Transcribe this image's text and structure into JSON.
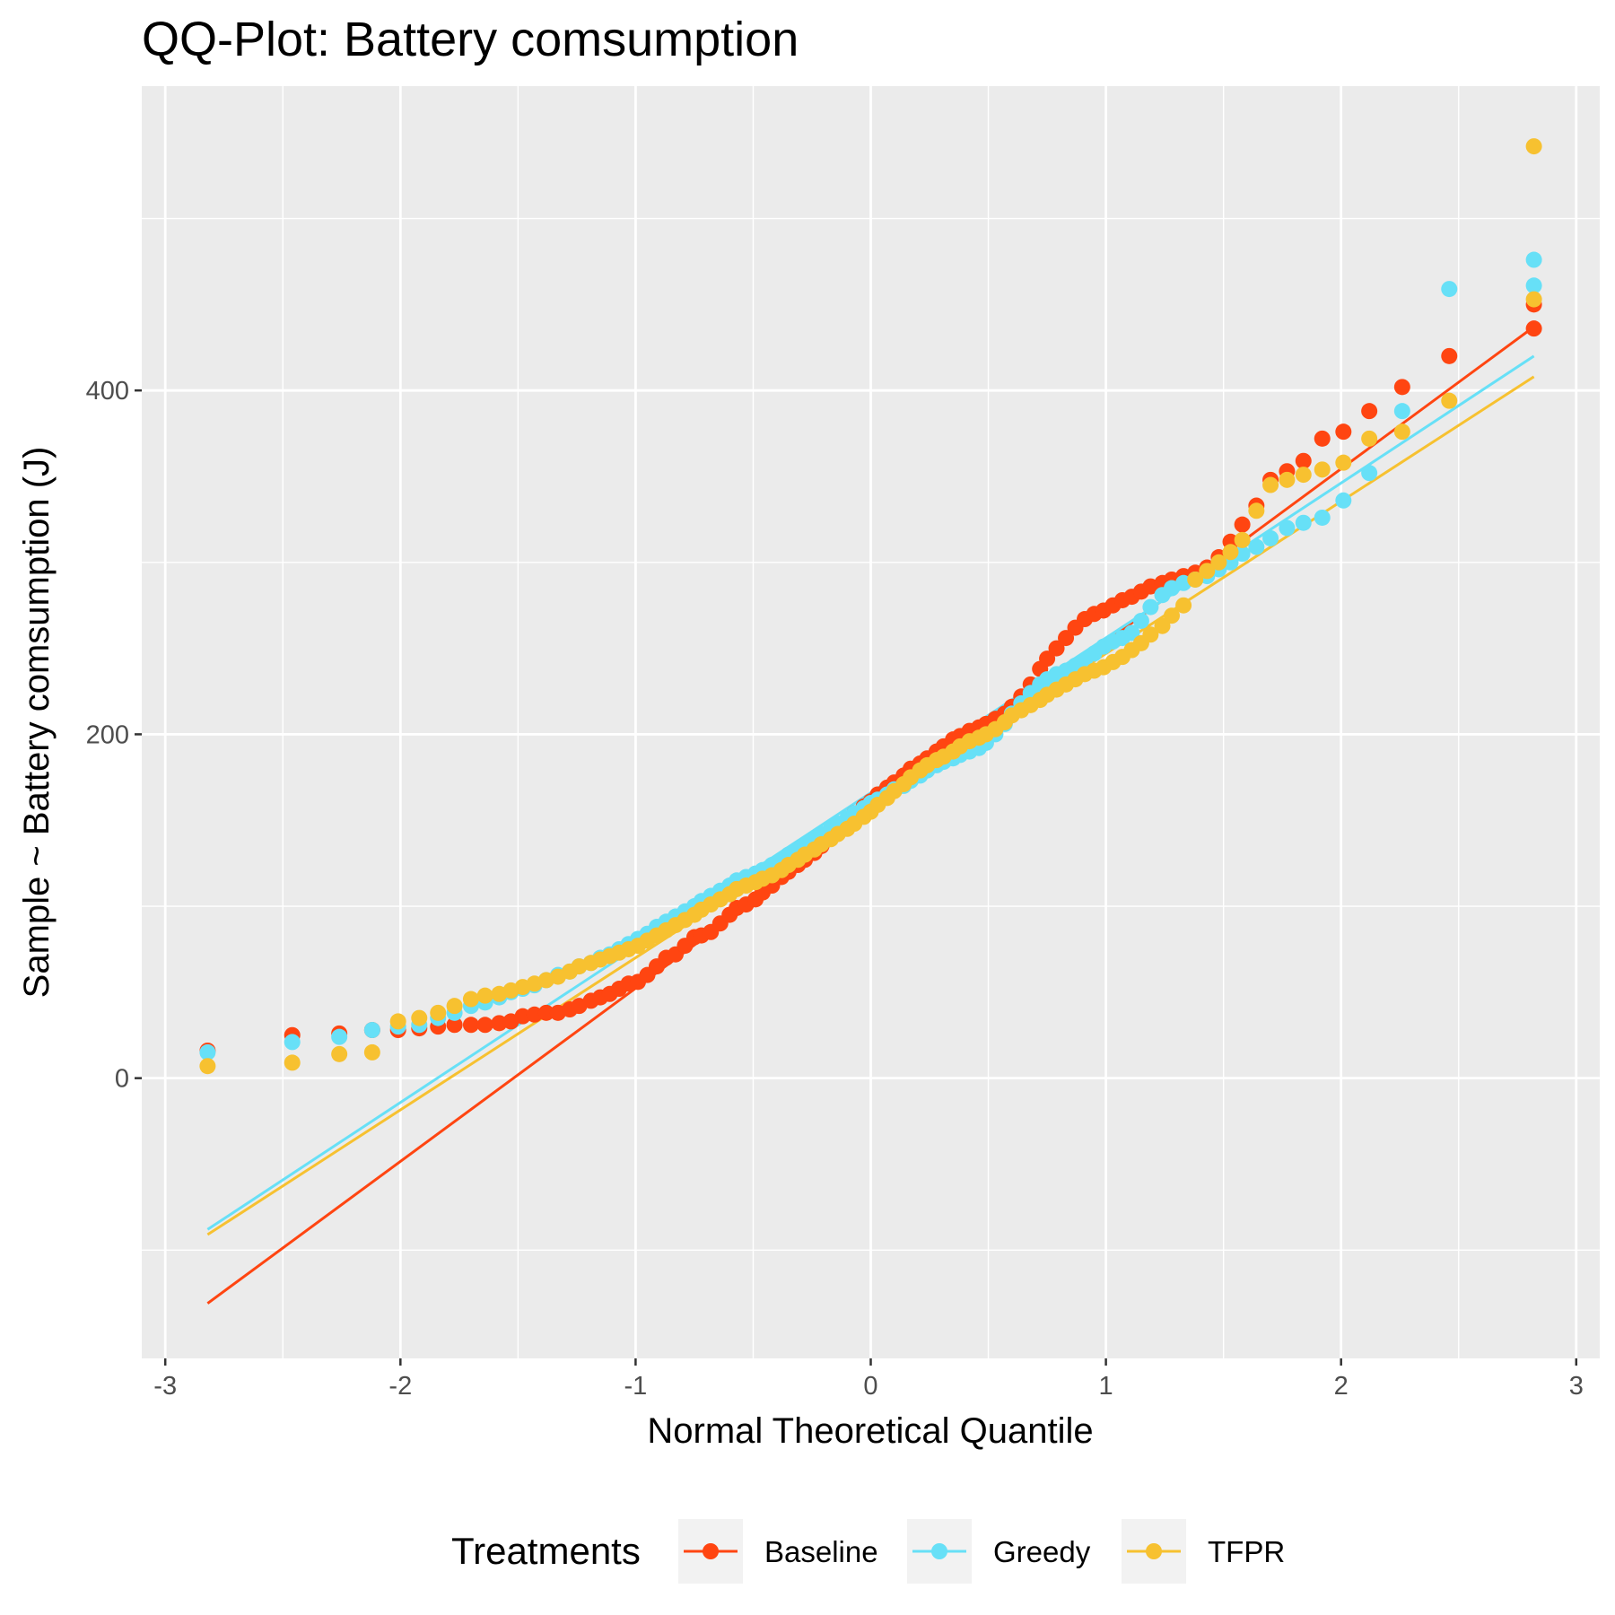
{
  "chart_data": {
    "type": "scatter",
    "title": "QQ-Plot: Battery comsumption",
    "xlabel": "Normal Theoretical Quantile",
    "ylabel": "Sample ~ Battery comsumption (J)",
    "xlim": [
      -3.1,
      3.1
    ],
    "ylim": [
      -163,
      577
    ],
    "x_ticks": [
      -3,
      -2,
      -1,
      0,
      1,
      2,
      3
    ],
    "x_tick_labels": [
      "-3",
      "-2",
      "-1",
      "0",
      "1",
      "2",
      "3"
    ],
    "y_ticks": [
      0,
      200,
      400
    ],
    "y_tick_labels": [
      "0",
      "200",
      "400"
    ],
    "grid": true,
    "legend": {
      "title": "Treatments",
      "position": "bottom"
    },
    "series": [
      {
        "name": "Baseline",
        "color": "#FF4511",
        "line": {
          "x": [
            -2.82,
            2.82
          ],
          "y": [
            -131,
            437
          ]
        },
        "points": [
          [
            -2.82,
            16
          ],
          [
            -2.46,
            25
          ],
          [
            -2.26,
            26
          ],
          [
            -2.12,
            28
          ],
          [
            -2.01,
            28
          ],
          [
            -1.92,
            29
          ],
          [
            -1.84,
            30
          ],
          [
            -1.77,
            31
          ],
          [
            -1.7,
            31
          ],
          [
            -1.64,
            31
          ],
          [
            -1.58,
            32
          ],
          [
            -1.53,
            33
          ],
          [
            -1.48,
            36
          ],
          [
            -1.43,
            37
          ],
          [
            -1.38,
            38
          ],
          [
            -1.33,
            38
          ],
          [
            -1.28,
            40
          ],
          [
            -1.24,
            42
          ],
          [
            -1.19,
            45
          ],
          [
            -1.15,
            47
          ],
          [
            -1.11,
            49
          ],
          [
            -1.07,
            52
          ],
          [
            -1.03,
            55
          ],
          [
            -0.99,
            56
          ],
          [
            -0.95,
            60
          ],
          [
            -0.91,
            65
          ],
          [
            -0.87,
            70
          ],
          [
            -0.83,
            72
          ],
          [
            -0.79,
            77
          ],
          [
            -0.75,
            82
          ],
          [
            -0.72,
            83
          ],
          [
            -0.68,
            85
          ],
          [
            -0.64,
            90
          ],
          [
            -0.6,
            95
          ],
          [
            -0.57,
            99
          ],
          [
            -0.53,
            101
          ],
          [
            -0.49,
            104
          ],
          [
            -0.46,
            108
          ],
          [
            -0.42,
            112
          ],
          [
            -0.38,
            117
          ],
          [
            -0.35,
            120
          ],
          [
            -0.31,
            124
          ],
          [
            -0.28,
            127
          ],
          [
            -0.24,
            131
          ],
          [
            -0.21,
            135
          ],
          [
            -0.17,
            140
          ],
          [
            -0.14,
            144
          ],
          [
            -0.1,
            150
          ],
          [
            -0.07,
            154
          ],
          [
            -0.03,
            158
          ],
          [
            0,
            161
          ],
          [
            0.03,
            165
          ],
          [
            0.07,
            169
          ],
          [
            0.1,
            172
          ],
          [
            0.14,
            176
          ],
          [
            0.17,
            180
          ],
          [
            0.21,
            183
          ],
          [
            0.24,
            186
          ],
          [
            0.28,
            190
          ],
          [
            0.31,
            193
          ],
          [
            0.35,
            197
          ],
          [
            0.38,
            199
          ],
          [
            0.42,
            202
          ],
          [
            0.46,
            204
          ],
          [
            0.49,
            206
          ],
          [
            0.53,
            209
          ],
          [
            0.57,
            212
          ],
          [
            0.6,
            216
          ],
          [
            0.64,
            222
          ],
          [
            0.68,
            229
          ],
          [
            0.72,
            238
          ],
          [
            0.75,
            244
          ],
          [
            0.79,
            250
          ],
          [
            0.83,
            256
          ],
          [
            0.87,
            262
          ],
          [
            0.91,
            267
          ],
          [
            0.95,
            270
          ],
          [
            0.99,
            272
          ],
          [
            1.03,
            275
          ],
          [
            1.07,
            278
          ],
          [
            1.11,
            280
          ],
          [
            1.15,
            283
          ],
          [
            1.19,
            286
          ],
          [
            1.24,
            288
          ],
          [
            1.28,
            290
          ],
          [
            1.33,
            292
          ],
          [
            1.38,
            294
          ],
          [
            1.43,
            297
          ],
          [
            1.48,
            303
          ],
          [
            1.53,
            312
          ],
          [
            1.58,
            322
          ],
          [
            1.64,
            333
          ],
          [
            1.7,
            348
          ],
          [
            1.77,
            353
          ],
          [
            1.84,
            359
          ],
          [
            1.92,
            372
          ],
          [
            2.01,
            376
          ],
          [
            2.12,
            388
          ],
          [
            2.26,
            402
          ],
          [
            2.46,
            420
          ],
          [
            2.82,
            436
          ],
          [
            2.82,
            450
          ]
        ]
      },
      {
        "name": "Greedy",
        "color": "#67E0F7",
        "line": {
          "x": [
            -2.82,
            2.82
          ],
          "y": [
            -88,
            420
          ]
        },
        "points": [
          [
            -2.82,
            15
          ],
          [
            -2.46,
            21
          ],
          [
            -2.26,
            24
          ],
          [
            -2.12,
            28
          ],
          [
            -2.01,
            30
          ],
          [
            -1.92,
            31
          ],
          [
            -1.84,
            35
          ],
          [
            -1.77,
            38
          ],
          [
            -1.7,
            42
          ],
          [
            -1.64,
            44
          ],
          [
            -1.58,
            47
          ],
          [
            -1.53,
            50
          ],
          [
            -1.48,
            52
          ],
          [
            -1.43,
            54
          ],
          [
            -1.38,
            57
          ],
          [
            -1.33,
            60
          ],
          [
            -1.28,
            62
          ],
          [
            -1.24,
            65
          ],
          [
            -1.19,
            67
          ],
          [
            -1.15,
            70
          ],
          [
            -1.11,
            72
          ],
          [
            -1.07,
            75
          ],
          [
            -1.03,
            78
          ],
          [
            -0.99,
            81
          ],
          [
            -0.95,
            84
          ],
          [
            -0.91,
            88
          ],
          [
            -0.87,
            91
          ],
          [
            -0.83,
            94
          ],
          [
            -0.79,
            97
          ],
          [
            -0.75,
            100
          ],
          [
            -0.72,
            103
          ],
          [
            -0.68,
            106
          ],
          [
            -0.64,
            109
          ],
          [
            -0.6,
            112
          ],
          [
            -0.57,
            115
          ],
          [
            -0.53,
            117
          ],
          [
            -0.49,
            119
          ],
          [
            -0.46,
            121
          ],
          [
            -0.42,
            124
          ],
          [
            -0.38,
            127
          ],
          [
            -0.35,
            130
          ],
          [
            -0.31,
            133
          ],
          [
            -0.28,
            136
          ],
          [
            -0.24,
            139
          ],
          [
            -0.21,
            142
          ],
          [
            -0.17,
            145
          ],
          [
            -0.14,
            148
          ],
          [
            -0.1,
            151
          ],
          [
            -0.07,
            154
          ],
          [
            -0.03,
            157
          ],
          [
            0,
            160
          ],
          [
            0.03,
            162
          ],
          [
            0.07,
            165
          ],
          [
            0.1,
            168
          ],
          [
            0.14,
            170
          ],
          [
            0.17,
            173
          ],
          [
            0.21,
            176
          ],
          [
            0.24,
            179
          ],
          [
            0.28,
            182
          ],
          [
            0.31,
            184
          ],
          [
            0.35,
            186
          ],
          [
            0.38,
            188
          ],
          [
            0.42,
            190
          ],
          [
            0.46,
            192
          ],
          [
            0.49,
            195
          ],
          [
            0.53,
            200
          ],
          [
            0.57,
            206
          ],
          [
            0.6,
            212
          ],
          [
            0.64,
            218
          ],
          [
            0.68,
            224
          ],
          [
            0.72,
            229
          ],
          [
            0.75,
            232
          ],
          [
            0.79,
            235
          ],
          [
            0.83,
            237
          ],
          [
            0.87,
            240
          ],
          [
            0.91,
            243
          ],
          [
            0.95,
            247
          ],
          [
            0.99,
            251
          ],
          [
            1.03,
            254
          ],
          [
            1.07,
            256
          ],
          [
            1.11,
            259
          ],
          [
            1.15,
            266
          ],
          [
            1.19,
            274
          ],
          [
            1.24,
            281
          ],
          [
            1.28,
            285
          ],
          [
            1.33,
            288
          ],
          [
            1.38,
            290
          ],
          [
            1.43,
            292
          ],
          [
            1.48,
            296
          ],
          [
            1.53,
            300
          ],
          [
            1.58,
            305
          ],
          [
            1.64,
            309
          ],
          [
            1.7,
            314
          ],
          [
            1.77,
            320
          ],
          [
            1.84,
            323
          ],
          [
            1.92,
            326
          ],
          [
            2.01,
            336
          ],
          [
            2.12,
            352
          ],
          [
            2.26,
            388
          ],
          [
            2.46,
            459
          ],
          [
            2.82,
            461
          ],
          [
            2.82,
            476
          ]
        ]
      },
      {
        "name": "TFPR",
        "color": "#F7C130",
        "line": {
          "x": [
            -2.82,
            2.82
          ],
          "y": [
            -91,
            408
          ]
        },
        "points": [
          [
            -2.82,
            7
          ],
          [
            -2.46,
            9
          ],
          [
            -2.26,
            14
          ],
          [
            -2.12,
            15
          ],
          [
            -2.01,
            33
          ],
          [
            -1.92,
            35
          ],
          [
            -1.84,
            38
          ],
          [
            -1.77,
            42
          ],
          [
            -1.7,
            46
          ],
          [
            -1.64,
            48
          ],
          [
            -1.58,
            49
          ],
          [
            -1.53,
            51
          ],
          [
            -1.48,
            53
          ],
          [
            -1.43,
            55
          ],
          [
            -1.38,
            57
          ],
          [
            -1.33,
            59
          ],
          [
            -1.28,
            62
          ],
          [
            -1.24,
            65
          ],
          [
            -1.19,
            67
          ],
          [
            -1.15,
            69
          ],
          [
            -1.11,
            71
          ],
          [
            -1.07,
            73
          ],
          [
            -1.03,
            75
          ],
          [
            -0.99,
            77
          ],
          [
            -0.95,
            80
          ],
          [
            -0.91,
            83
          ],
          [
            -0.87,
            86
          ],
          [
            -0.83,
            89
          ],
          [
            -0.79,
            92
          ],
          [
            -0.75,
            95
          ],
          [
            -0.72,
            98
          ],
          [
            -0.68,
            101
          ],
          [
            -0.64,
            104
          ],
          [
            -0.6,
            107
          ],
          [
            -0.57,
            110
          ],
          [
            -0.53,
            112
          ],
          [
            -0.49,
            114
          ],
          [
            -0.46,
            116
          ],
          [
            -0.42,
            118
          ],
          [
            -0.38,
            121
          ],
          [
            -0.35,
            124
          ],
          [
            -0.31,
            127
          ],
          [
            -0.28,
            130
          ],
          [
            -0.24,
            133
          ],
          [
            -0.21,
            136
          ],
          [
            -0.17,
            139
          ],
          [
            -0.14,
            142
          ],
          [
            -0.1,
            145
          ],
          [
            -0.07,
            148
          ],
          [
            -0.03,
            152
          ],
          [
            0,
            155
          ],
          [
            0.03,
            159
          ],
          [
            0.07,
            163
          ],
          [
            0.1,
            167
          ],
          [
            0.14,
            171
          ],
          [
            0.17,
            175
          ],
          [
            0.21,
            179
          ],
          [
            0.24,
            182
          ],
          [
            0.28,
            185
          ],
          [
            0.31,
            187
          ],
          [
            0.35,
            190
          ],
          [
            0.38,
            193
          ],
          [
            0.42,
            196
          ],
          [
            0.46,
            198
          ],
          [
            0.49,
            200
          ],
          [
            0.53,
            203
          ],
          [
            0.57,
            207
          ],
          [
            0.6,
            211
          ],
          [
            0.64,
            214
          ],
          [
            0.68,
            217
          ],
          [
            0.72,
            220
          ],
          [
            0.75,
            223
          ],
          [
            0.79,
            226
          ],
          [
            0.83,
            229
          ],
          [
            0.87,
            232
          ],
          [
            0.91,
            235
          ],
          [
            0.95,
            237
          ],
          [
            0.99,
            239
          ],
          [
            1.03,
            242
          ],
          [
            1.07,
            245
          ],
          [
            1.11,
            249
          ],
          [
            1.15,
            253
          ],
          [
            1.19,
            258
          ],
          [
            1.24,
            263
          ],
          [
            1.28,
            269
          ],
          [
            1.33,
            275
          ],
          [
            1.38,
            290
          ],
          [
            1.43,
            295
          ],
          [
            1.48,
            300
          ],
          [
            1.53,
            306
          ],
          [
            1.58,
            313
          ],
          [
            1.64,
            330
          ],
          [
            1.7,
            345
          ],
          [
            1.77,
            348
          ],
          [
            1.84,
            351
          ],
          [
            1.92,
            354
          ],
          [
            2.01,
            358
          ],
          [
            2.12,
            372
          ],
          [
            2.26,
            376
          ],
          [
            2.46,
            394
          ],
          [
            2.82,
            453
          ],
          [
            2.82,
            542
          ]
        ]
      }
    ]
  }
}
